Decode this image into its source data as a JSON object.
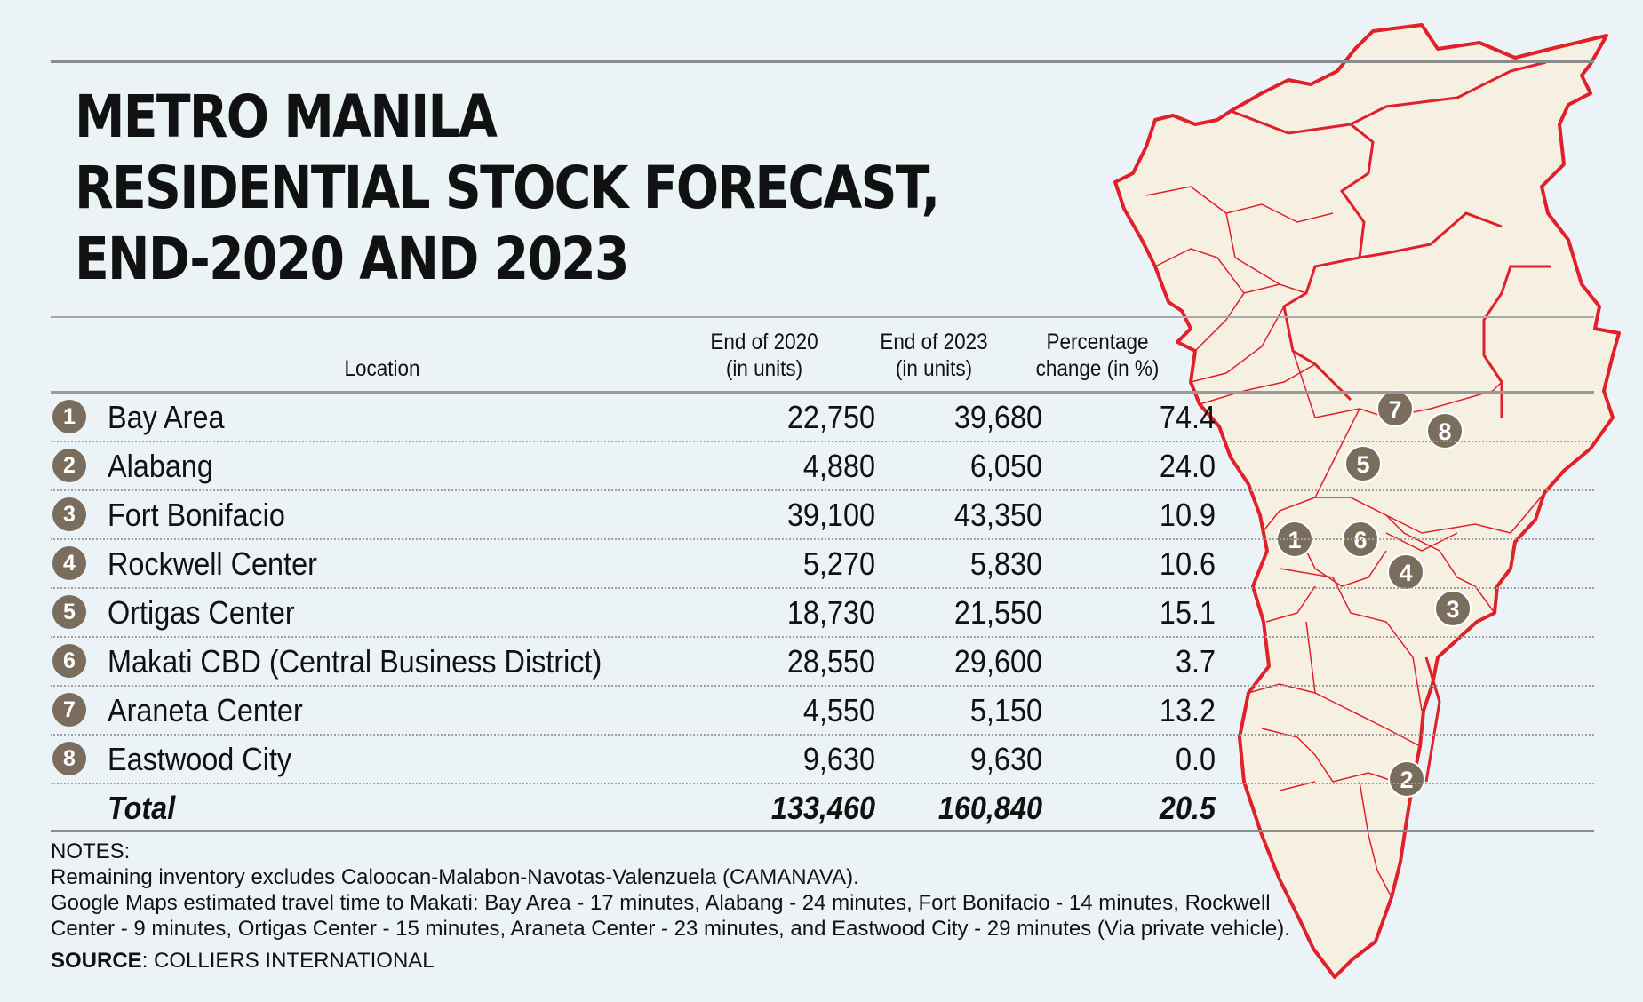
{
  "title_lines": [
    "METRO MANILA",
    "RESIDENTIAL STOCK FORECAST,",
    "END-2020 AND 2023"
  ],
  "colors": {
    "badge": "#7a6d5e",
    "map_border": "#e0202a",
    "map_fill": "#f6f0e3",
    "background": "#ecf3f6"
  },
  "chart_data": {
    "type": "table",
    "title": "METRO MANILA RESIDENTIAL STOCK FORECAST, END-2020 AND 2023",
    "columns": {
      "location": "Location",
      "end2020": [
        "End of 2020",
        "(in units)"
      ],
      "end2023": [
        "End of 2023",
        "(in units)"
      ],
      "pct": [
        "Percentage",
        "change (in %)"
      ]
    },
    "rows": [
      {
        "num": "1",
        "location": "Bay Area",
        "end2020": "22,750",
        "end2023": "39,680",
        "pct": "74.4"
      },
      {
        "num": "2",
        "location": "Alabang",
        "end2020": "4,880",
        "end2023": "6,050",
        "pct": "24.0"
      },
      {
        "num": "3",
        "location": "Fort Bonifacio",
        "end2020": "39,100",
        "end2023": "43,350",
        "pct": "10.9"
      },
      {
        "num": "4",
        "location": "Rockwell Center",
        "end2020": "5,270",
        "end2023": "5,830",
        "pct": "10.6"
      },
      {
        "num": "5",
        "location": "Ortigas Center",
        "end2020": "18,730",
        "end2023": "21,550",
        "pct": "15.1"
      },
      {
        "num": "6",
        "location": "Makati CBD (Central Business District)",
        "end2020": "28,550",
        "end2023": "29,600",
        "pct": "3.7"
      },
      {
        "num": "7",
        "location": "Araneta Center",
        "end2020": "4,550",
        "end2023": "5,150",
        "pct": "13.2"
      },
      {
        "num": "8",
        "location": "Eastwood City",
        "end2020": "9,630",
        "end2023": "9,630",
        "pct": "0.0"
      }
    ],
    "total": {
      "location": "Total",
      "end2020": "133,460",
      "end2023": "160,840",
      "pct": "20.5"
    }
  },
  "notes": {
    "heading": "NOTES:",
    "lines": [
      "Remaining inventory excludes Caloocan-Malabon-Navotas-Valenzuela (CAMANAVA).",
      "Google Maps estimated travel time to Makati: Bay Area - 17 minutes, Alabang - 24 minutes, Fort Bonifacio - 14 minutes, Rockwell Center - 9 minutes, Ortigas Center - 15 minutes, Araneta Center - 23 minutes, and Eastwood City - 29 minutes (Via private vehicle)."
    ]
  },
  "source": {
    "label": "SOURCE",
    "text": ": COLLIERS INTERNATIONAL"
  },
  "map": {
    "pins": [
      "1",
      "2",
      "3",
      "4",
      "5",
      "6",
      "7",
      "8"
    ]
  }
}
